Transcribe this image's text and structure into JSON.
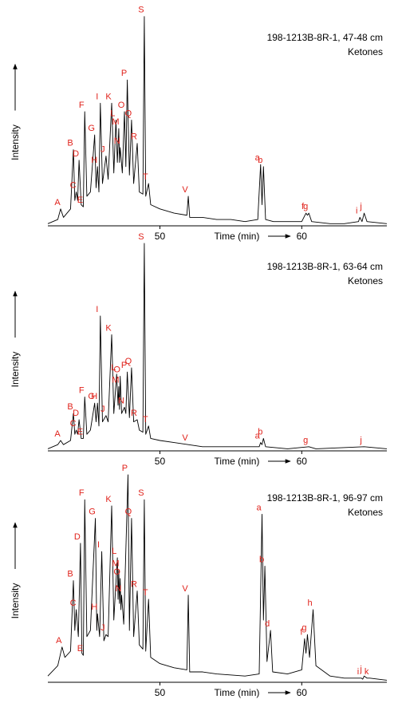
{
  "chart_data": [
    {
      "type": "line",
      "title": "198-1213B-8R-1, 47-48 cm",
      "subtitle": "Ketones",
      "xlabel": "Time (min)",
      "ylabel": "Intensity",
      "xlim": [
        42.1,
        66
      ],
      "xticks": [
        50,
        60
      ],
      "ylim": [
        0,
        100
      ],
      "series": [
        {
          "color": "#000000",
          "x": [
            42.1,
            42.8,
            43.0,
            43.2,
            43.7,
            43.9,
            44.0,
            44.1,
            44.2,
            44.3,
            44.45,
            44.6,
            44.7,
            44.85,
            45.1,
            45.4,
            45.5,
            45.6,
            45.7,
            45.8,
            45.95,
            46.2,
            46.35,
            46.6,
            46.75,
            46.9,
            47.0,
            47.1,
            47.15,
            47.2,
            47.35,
            47.5,
            47.6,
            47.7,
            47.85,
            48.0,
            48.15,
            48.4,
            48.55,
            48.8,
            48.9,
            49.0,
            49.2,
            49.35,
            50,
            51,
            51.9,
            52.0,
            52.1,
            53,
            54,
            55,
            56,
            56.9,
            57.1,
            57.2,
            57.3,
            57.45,
            58,
            59,
            60,
            60.3,
            60.4,
            60.5,
            60.7,
            62,
            63,
            64.0,
            64.1,
            64.25,
            64.4,
            64.6,
            66
          ],
          "values": [
            1,
            3,
            8,
            4,
            8,
            36,
            12,
            16,
            12,
            31,
            10,
            9,
            54,
            14,
            16,
            43,
            18,
            28,
            16,
            58,
            20,
            33,
            22,
            58,
            25,
            50,
            30,
            46,
            30,
            37,
            25,
            54,
            28,
            69,
            24,
            50,
            20,
            39,
            16,
            15,
            99,
            14,
            20,
            10,
            8,
            6,
            5,
            14,
            4,
            4,
            3,
            3,
            2,
            3,
            29,
            10,
            28,
            3,
            2,
            2,
            2,
            6,
            5,
            6,
            2,
            1,
            1,
            2,
            4,
            2,
            6,
            2,
            1
          ]
        }
      ],
      "peak_labels": {
        "labels": [
          "A",
          "B",
          "C",
          "D",
          "E",
          "F",
          "G",
          "H",
          "I",
          "J",
          "K",
          "L",
          "M",
          "N",
          "O",
          "P",
          "Q",
          "R",
          "S",
          "T",
          "V",
          "a",
          "b",
          "f",
          "g",
          "i",
          "j"
        ],
        "x": [
          43.0,
          43.9,
          44.1,
          44.3,
          44.6,
          44.7,
          45.4,
          45.6,
          45.8,
          46.2,
          46.6,
          46.9,
          47.1,
          47.2,
          47.5,
          47.7,
          48.0,
          48.4,
          48.9,
          49.2,
          52.0,
          57.1,
          57.3,
          60.3,
          60.5,
          64.1,
          64.4
        ]
      }
    },
    {
      "type": "line",
      "title": "198-1213B-8R-1, 63-64 cm",
      "subtitle": "Ketones",
      "xlabel": "Time (min)",
      "ylabel": "Intensity",
      "xlim": [
        42.1,
        66
      ],
      "xticks": [
        50,
        60
      ],
      "ylim": [
        0,
        100
      ],
      "series": [
        {
          "color": "#000000",
          "x": [
            42.1,
            42.8,
            43.0,
            43.2,
            43.7,
            43.9,
            44.0,
            44.1,
            44.2,
            44.3,
            44.45,
            44.6,
            44.7,
            44.85,
            45.1,
            45.4,
            45.5,
            45.6,
            45.7,
            45.8,
            45.95,
            46.2,
            46.35,
            46.6,
            46.75,
            46.95,
            47.05,
            47.1,
            47.15,
            47.2,
            47.3,
            47.5,
            47.6,
            47.7,
            47.85,
            48.0,
            48.15,
            48.4,
            48.55,
            48.8,
            48.9,
            49.0,
            49.2,
            49.35,
            50,
            51,
            52.0,
            53,
            55,
            57.0,
            57.1,
            57.2,
            57.3,
            57.45,
            59,
            60.5,
            61,
            64.4,
            66
          ],
          "values": [
            1,
            3,
            5,
            3,
            5,
            18,
            8,
            10,
            8,
            15,
            6,
            6,
            26,
            8,
            10,
            23,
            14,
            23,
            12,
            65,
            14,
            17,
            14,
            56,
            18,
            37,
            22,
            31,
            20,
            36,
            18,
            21,
            18,
            38,
            16,
            40,
            14,
            15,
            10,
            9,
            100,
            8,
            12,
            6,
            5,
            4,
            3,
            2,
            2,
            2,
            4,
            3,
            6,
            2,
            1,
            2,
            1,
            2,
            1
          ]
        }
      ],
      "peak_labels": {
        "labels": [
          "A",
          "B",
          "C",
          "D",
          "E",
          "F",
          "G",
          "H",
          "I",
          "J",
          "K",
          "L",
          "O",
          "M",
          "N",
          "P",
          "Q",
          "R",
          "S",
          "T",
          "V",
          "a",
          "b",
          "g",
          "j"
        ],
        "x": [
          43.0,
          43.9,
          44.1,
          44.3,
          44.6,
          44.7,
          45.4,
          45.6,
          45.8,
          46.2,
          46.6,
          46.95,
          47.2,
          47.1,
          47.5,
          47.7,
          48.0,
          48.4,
          48.9,
          49.2,
          52.0,
          57.1,
          57.3,
          60.5,
          64.4
        ]
      }
    },
    {
      "type": "line",
      "title": "198-1213B-8R-1, 96-97 cm",
      "subtitle": "Ketones",
      "xlabel": "Time (min)",
      "ylabel": "Intensity",
      "xlim": [
        42.1,
        66
      ],
      "xticks": [
        50,
        60
      ],
      "ylim": [
        0,
        100
      ],
      "series": [
        {
          "color": "#000000",
          "x": [
            42.1,
            42.8,
            43.1,
            43.3,
            43.7,
            43.9,
            44.0,
            44.1,
            44.25,
            44.4,
            44.5,
            44.6,
            44.7,
            44.85,
            45.1,
            45.45,
            45.55,
            45.6,
            45.75,
            45.9,
            46.05,
            46.2,
            46.35,
            46.6,
            46.75,
            47.0,
            47.05,
            47.1,
            47.15,
            47.2,
            47.25,
            47.3,
            47.45,
            47.75,
            47.85,
            48.0,
            48.15,
            48.4,
            48.55,
            48.8,
            48.9,
            49.0,
            49.2,
            49.35,
            50,
            51,
            51.9,
            52.0,
            52.1,
            53,
            54,
            56,
            57.0,
            57.2,
            57.3,
            57.4,
            57.55,
            57.8,
            57.95,
            59,
            60.0,
            60.2,
            60.3,
            60.4,
            60.55,
            60.8,
            61.0,
            62,
            63,
            64.2,
            64.3,
            64.4,
            64.6,
            64.8,
            66
          ],
          "values": [
            3,
            8,
            17,
            12,
            15,
            49,
            25,
            35,
            22,
            67,
            14,
            13,
            88,
            22,
            25,
            79,
            25,
            33,
            22,
            63,
            20,
            23,
            22,
            85,
            30,
            60,
            40,
            54,
            38,
            50,
            35,
            42,
            28,
            100,
            25,
            79,
            22,
            44,
            18,
            16,
            88,
            15,
            40,
            12,
            9,
            7,
            6,
            42,
            5,
            5,
            4,
            3,
            4,
            81,
            30,
            56,
            10,
            25,
            5,
            4,
            6,
            21,
            14,
            23,
            12,
            35,
            8,
            3,
            2,
            2,
            1.5,
            3,
            2,
            2,
            1
          ]
        }
      ],
      "peak_labels": {
        "labels": [
          "A",
          "B",
          "C",
          "D",
          "E",
          "F",
          "G",
          "H",
          "I",
          "J",
          "K",
          "L",
          "M",
          "O",
          "N",
          "P",
          "Q",
          "R",
          "S",
          "T",
          "V",
          "a",
          "b",
          "d",
          "f",
          "g",
          "h",
          "i",
          "j",
          "k"
        ],
        "x": [
          43.1,
          43.9,
          44.1,
          44.4,
          44.6,
          44.7,
          45.45,
          45.6,
          45.9,
          46.2,
          46.6,
          47.0,
          47.1,
          47.2,
          47.3,
          47.75,
          48.0,
          48.4,
          48.9,
          49.2,
          52.0,
          57.2,
          57.4,
          57.8,
          60.2,
          60.4,
          60.8,
          64.2,
          64.4,
          64.8
        ]
      }
    }
  ]
}
